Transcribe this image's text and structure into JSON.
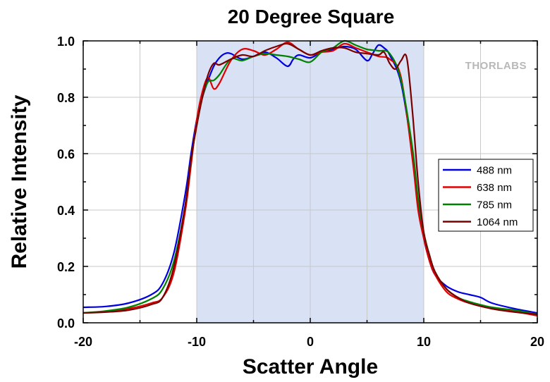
{
  "chart_data": {
    "type": "line",
    "title": "20 Degree Square",
    "xlabel": "Scatter Angle",
    "ylabel": "Relative Intensity",
    "xlim": [
      -20,
      20
    ],
    "ylim": [
      0,
      1.0
    ],
    "x_ticks": [
      -20,
      -10,
      0,
      10,
      20
    ],
    "x_tick_labels": [
      "-20",
      "-10",
      "0",
      "10",
      "20"
    ],
    "y_ticks": [
      0,
      0.2,
      0.4,
      0.6,
      0.8,
      1.0
    ],
    "y_tick_labels": [
      "0.0",
      "0.2",
      "0.4",
      "0.6",
      "0.8",
      "1.0"
    ],
    "grid": true,
    "legend_position": "right",
    "shaded_region": {
      "x": [
        -10,
        10
      ],
      "color": "#d9e1f5"
    },
    "logo": "THORLABS",
    "series": [
      {
        "name": "488 nm",
        "color": "#0000e0",
        "x": [
          -20,
          -18,
          -16,
          -14,
          -13,
          -12,
          -11,
          -10.5,
          -10,
          -9.5,
          -9,
          -8.5,
          -8,
          -7.5,
          -7,
          -6,
          -5,
          -4,
          -3,
          -2,
          -1.5,
          -1,
          0,
          1,
          2,
          3,
          4,
          5,
          5.5,
          6,
          6.5,
          7,
          8,
          9,
          9.5,
          10,
          10.5,
          11,
          12,
          13,
          14,
          15,
          16,
          18,
          20
        ],
        "y": [
          0.055,
          0.058,
          0.07,
          0.1,
          0.14,
          0.25,
          0.46,
          0.6,
          0.72,
          0.8,
          0.86,
          0.91,
          0.94,
          0.955,
          0.955,
          0.935,
          0.945,
          0.96,
          0.94,
          0.91,
          0.935,
          0.95,
          0.94,
          0.96,
          0.97,
          0.98,
          0.97,
          0.93,
          0.955,
          0.985,
          0.975,
          0.95,
          0.85,
          0.6,
          0.42,
          0.3,
          0.22,
          0.17,
          0.13,
          0.11,
          0.1,
          0.09,
          0.07,
          0.05,
          0.035
        ]
      },
      {
        "name": "638 nm",
        "color": "#e00000",
        "x": [
          -20,
          -18,
          -16,
          -14,
          -13,
          -12,
          -11,
          -10.5,
          -10,
          -9.5,
          -9,
          -8.5,
          -8,
          -7,
          -6,
          -5,
          -4,
          -3,
          -2,
          -1,
          0,
          1,
          2,
          3,
          4,
          5,
          6,
          7,
          8,
          9,
          9.5,
          10,
          10.5,
          11,
          12,
          13,
          14,
          16,
          18,
          20
        ],
        "y": [
          0.035,
          0.04,
          0.05,
          0.07,
          0.09,
          0.18,
          0.4,
          0.56,
          0.72,
          0.82,
          0.87,
          0.83,
          0.85,
          0.93,
          0.97,
          0.965,
          0.95,
          0.97,
          0.995,
          0.97,
          0.95,
          0.96,
          0.965,
          0.99,
          0.975,
          0.96,
          0.945,
          0.935,
          0.87,
          0.58,
          0.4,
          0.3,
          0.22,
          0.17,
          0.11,
          0.085,
          0.07,
          0.05,
          0.04,
          0.025
        ]
      },
      {
        "name": "785 nm",
        "color": "#008000",
        "x": [
          -20,
          -18,
          -16,
          -14,
          -13,
          -12,
          -11,
          -10.5,
          -10,
          -9.5,
          -9,
          -8.5,
          -8,
          -7,
          -6,
          -5,
          -4,
          -3,
          -2,
          -1,
          0,
          1,
          2,
          3,
          4,
          5,
          6,
          7,
          8,
          9,
          9.5,
          10,
          10.5,
          11,
          12,
          13,
          14,
          16,
          18,
          20
        ],
        "y": [
          0.035,
          0.042,
          0.055,
          0.085,
          0.12,
          0.22,
          0.42,
          0.58,
          0.7,
          0.8,
          0.855,
          0.86,
          0.88,
          0.935,
          0.93,
          0.945,
          0.955,
          0.95,
          0.945,
          0.935,
          0.925,
          0.96,
          0.975,
          1.0,
          0.985,
          0.97,
          0.965,
          0.955,
          0.86,
          0.62,
          0.44,
          0.32,
          0.24,
          0.18,
          0.12,
          0.09,
          0.075,
          0.055,
          0.045,
          0.03
        ]
      },
      {
        "name": "1064 nm",
        "color": "#7a0000",
        "x": [
          -20,
          -18,
          -16,
          -14,
          -13,
          -12,
          -11,
          -10.5,
          -10,
          -9.5,
          -9,
          -8.5,
          -8,
          -7,
          -6,
          -5,
          -4,
          -3,
          -2,
          -1,
          0,
          1,
          2,
          3,
          4,
          5,
          6,
          6.5,
          7,
          7.5,
          8,
          8.5,
          9,
          9.5,
          10,
          10.5,
          11,
          12,
          13,
          14,
          16,
          18,
          20
        ],
        "y": [
          0.035,
          0.038,
          0.045,
          0.065,
          0.09,
          0.2,
          0.42,
          0.58,
          0.7,
          0.8,
          0.88,
          0.92,
          0.915,
          0.935,
          0.95,
          0.945,
          0.965,
          0.98,
          0.99,
          0.97,
          0.95,
          0.965,
          0.975,
          0.975,
          0.96,
          0.955,
          0.95,
          0.96,
          0.92,
          0.9,
          0.93,
          0.94,
          0.75,
          0.5,
          0.32,
          0.24,
          0.18,
          0.12,
          0.09,
          0.07,
          0.05,
          0.038,
          0.03
        ]
      }
    ]
  }
}
